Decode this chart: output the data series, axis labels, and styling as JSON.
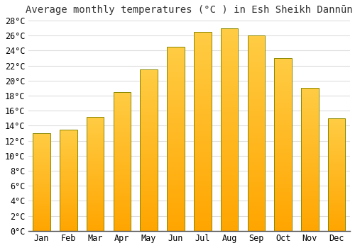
{
  "title": "Average monthly temperatures (°C ) in Esh Sheikh Dannūn",
  "months": [
    "Jan",
    "Feb",
    "Mar",
    "Apr",
    "May",
    "Jun",
    "Jul",
    "Aug",
    "Sep",
    "Oct",
    "Nov",
    "Dec"
  ],
  "temperatures": [
    13.0,
    13.5,
    15.2,
    18.5,
    21.5,
    24.5,
    26.5,
    27.0,
    26.0,
    23.0,
    19.0,
    15.0
  ],
  "ylim": [
    0,
    28
  ],
  "yticks": [
    0,
    2,
    4,
    6,
    8,
    10,
    12,
    14,
    16,
    18,
    20,
    22,
    24,
    26,
    28
  ],
  "bar_color_light": "#FFCC44",
  "bar_color_dark": "#FFA500",
  "bar_edge_color": "#888800",
  "background_color": "#ffffff",
  "plot_bg_color": "#ffffff",
  "grid_color": "#dddddd",
  "title_fontsize": 10,
  "tick_fontsize": 8.5,
  "bar_width": 0.65,
  "figsize": [
    5.0,
    3.5
  ],
  "dpi": 100
}
